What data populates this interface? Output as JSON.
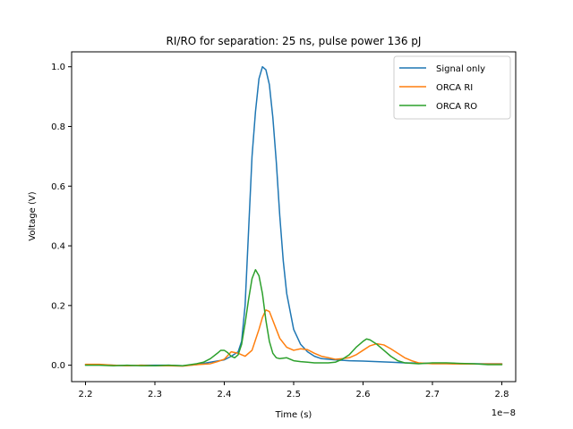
{
  "chart_data": {
    "type": "line",
    "title": "RI/RO for separation: 25 ns, pulse power 136 pJ",
    "xlabel": "Time (s)",
    "ylabel": "Voltage (V)",
    "x_offset_label": "1e−8",
    "xlim": [
      2.18,
      2.82
    ],
    "ylim": [
      -0.055,
      1.05
    ],
    "xticks": [
      2.2,
      2.3,
      2.4,
      2.5,
      2.6,
      2.7,
      2.8
    ],
    "xtick_labels": [
      "2.2",
      "2.3",
      "2.4",
      "2.5",
      "2.6",
      "2.7",
      "2.8"
    ],
    "yticks": [
      0.0,
      0.2,
      0.4,
      0.6,
      0.8,
      1.0
    ],
    "ytick_labels": [
      "0.0",
      "0.2",
      "0.4",
      "0.6",
      "0.8",
      "1.0"
    ],
    "grid": false,
    "legend_position": "top-right",
    "series": [
      {
        "name": "Signal only",
        "color": "#1f77b4",
        "x": [
          2.2,
          2.22,
          2.24,
          2.26,
          2.28,
          2.3,
          2.32,
          2.34,
          2.36,
          2.38,
          2.4,
          2.41,
          2.42,
          2.425,
          2.43,
          2.435,
          2.44,
          2.445,
          2.45,
          2.455,
          2.46,
          2.465,
          2.47,
          2.475,
          2.48,
          2.485,
          2.49,
          2.5,
          2.51,
          2.52,
          2.53,
          2.54,
          2.56,
          2.58,
          2.6,
          2.62,
          2.64,
          2.66,
          2.68,
          2.7,
          2.72,
          2.74,
          2.76,
          2.78,
          2.8
        ],
        "y": [
          0.002,
          0.002,
          0.0,
          -0.002,
          0.0,
          0.0,
          0.0,
          -0.002,
          0.002,
          0.01,
          0.018,
          0.03,
          0.045,
          0.08,
          0.2,
          0.45,
          0.7,
          0.85,
          0.96,
          1.0,
          0.99,
          0.94,
          0.83,
          0.68,
          0.5,
          0.35,
          0.24,
          0.12,
          0.07,
          0.045,
          0.03,
          0.022,
          0.018,
          0.015,
          0.014,
          0.012,
          0.01,
          0.008,
          0.007,
          0.006,
          0.006,
          0.005,
          0.005,
          0.005,
          0.005
        ]
      },
      {
        "name": "ORCA RI",
        "color": "#ff7f0e",
        "x": [
          2.2,
          2.22,
          2.24,
          2.26,
          2.28,
          2.3,
          2.32,
          2.34,
          2.36,
          2.38,
          2.39,
          2.4,
          2.41,
          2.42,
          2.43,
          2.44,
          2.45,
          2.455,
          2.46,
          2.465,
          2.47,
          2.475,
          2.48,
          2.49,
          2.5,
          2.51,
          2.52,
          2.53,
          2.54,
          2.55,
          2.56,
          2.57,
          2.58,
          2.59,
          2.6,
          2.61,
          2.62,
          2.63,
          2.64,
          2.65,
          2.66,
          2.67,
          2.68,
          2.7,
          2.72,
          2.74,
          2.76,
          2.78,
          2.8
        ],
        "y": [
          0.003,
          0.003,
          0.0,
          -0.002,
          0.0,
          -0.002,
          -0.002,
          -0.003,
          0.002,
          0.005,
          0.012,
          0.02,
          0.045,
          0.04,
          0.03,
          0.05,
          0.12,
          0.16,
          0.185,
          0.18,
          0.15,
          0.12,
          0.09,
          0.06,
          0.05,
          0.055,
          0.052,
          0.04,
          0.03,
          0.025,
          0.02,
          0.022,
          0.025,
          0.035,
          0.05,
          0.065,
          0.072,
          0.068,
          0.055,
          0.04,
          0.025,
          0.015,
          0.008,
          0.005,
          0.005,
          0.004,
          0.004,
          0.004,
          0.004
        ]
      },
      {
        "name": "ORCA RO",
        "color": "#2ca02c",
        "x": [
          2.2,
          2.22,
          2.24,
          2.26,
          2.28,
          2.3,
          2.32,
          2.34,
          2.36,
          2.37,
          2.38,
          2.39,
          2.395,
          2.4,
          2.405,
          2.41,
          2.415,
          2.42,
          2.425,
          2.43,
          2.435,
          2.44,
          2.445,
          2.45,
          2.455,
          2.46,
          2.465,
          2.47,
          2.475,
          2.48,
          2.49,
          2.5,
          2.51,
          2.52,
          2.53,
          2.54,
          2.55,
          2.56,
          2.57,
          2.58,
          2.59,
          2.6,
          2.605,
          2.61,
          2.62,
          2.63,
          2.64,
          2.65,
          2.66,
          2.68,
          2.7,
          2.72,
          2.74,
          2.76,
          2.78,
          2.8
        ],
        "y": [
          0.0,
          0.0,
          -0.002,
          0.0,
          -0.002,
          -0.002,
          0.0,
          -0.002,
          0.005,
          0.01,
          0.022,
          0.04,
          0.05,
          0.05,
          0.042,
          0.03,
          0.025,
          0.035,
          0.07,
          0.14,
          0.22,
          0.29,
          0.32,
          0.3,
          0.24,
          0.15,
          0.08,
          0.04,
          0.025,
          0.022,
          0.025,
          0.015,
          0.012,
          0.01,
          0.008,
          0.008,
          0.008,
          0.01,
          0.02,
          0.035,
          0.06,
          0.08,
          0.088,
          0.085,
          0.07,
          0.05,
          0.03,
          0.015,
          0.008,
          0.005,
          0.008,
          0.008,
          0.006,
          0.005,
          0.002,
          0.002
        ]
      }
    ]
  }
}
